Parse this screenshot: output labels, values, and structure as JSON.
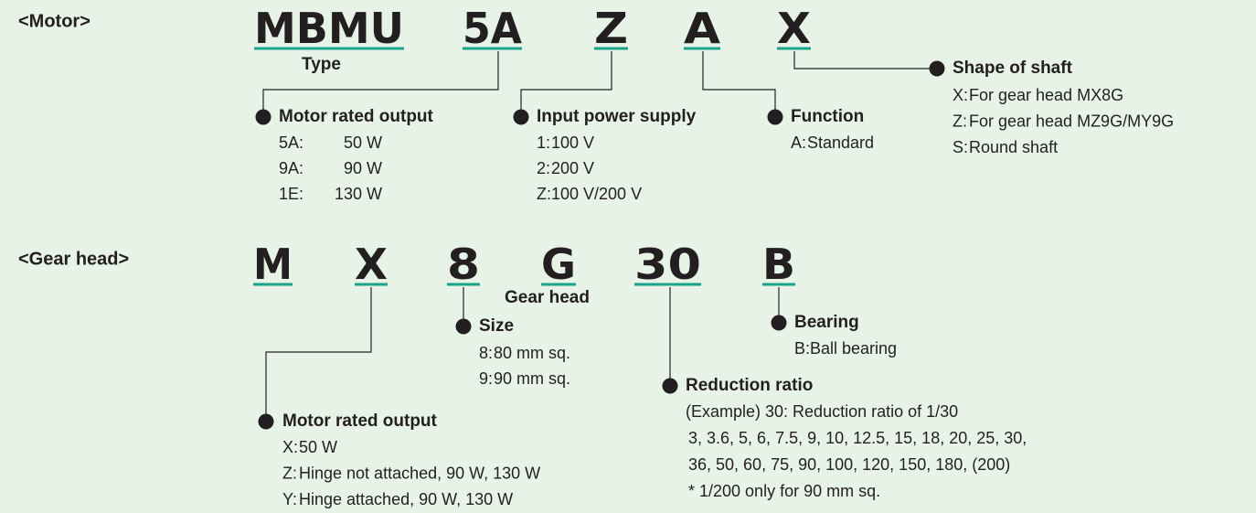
{
  "motor": {
    "label": "<Motor>",
    "codes": [
      "MBMU",
      "5A",
      "Z",
      "A",
      "X"
    ],
    "type_label": "Type",
    "groups": [
      {
        "title": "Motor rated output",
        "items": [
          {
            "code": "5A:",
            "text": "50 W"
          },
          {
            "code": "9A:",
            "text": "90 W"
          },
          {
            "code": "1E:",
            "text": "130 W"
          }
        ]
      },
      {
        "title": "Input power supply",
        "items": [
          {
            "code": "1:",
            "text": "100 V"
          },
          {
            "code": "2:",
            "text": "200 V"
          },
          {
            "code": "Z:",
            "text": "100 V/200 V"
          }
        ]
      },
      {
        "title": "Function",
        "items": [
          {
            "code": "A:",
            "text": "Standard"
          }
        ]
      },
      {
        "title": "Shape of shaft",
        "items": [
          {
            "code": "X:",
            "text": "For gear head MX8G"
          },
          {
            "code": "Z:",
            "text": "For gear head MZ9G/MY9G"
          },
          {
            "code": "S:",
            "text": "Round shaft"
          }
        ]
      }
    ]
  },
  "gear_head": {
    "label": "<Gear head>",
    "codes": [
      "M",
      "X",
      "8",
      "G",
      "30",
      "B"
    ],
    "type_label": "Gear head",
    "groups": [
      {
        "title": "Size",
        "items": [
          {
            "code": "8:",
            "text": "80 mm sq."
          },
          {
            "code": "9:",
            "text": "90 mm sq."
          }
        ]
      },
      {
        "title": "Bearing",
        "items": [
          {
            "code": "B:",
            "text": "Ball bearing"
          }
        ]
      },
      {
        "title": "Reduction ratio",
        "lines": [
          "(Example) 30: Reduction ratio of 1/30",
          "3, 3.6, 5, 6, 7.5, 9, 10, 12.5, 15, 18, 20, 25, 30,",
          "36, 50, 60, 75, 90, 100, 120, 150, 180, (200)",
          "* 1/200 only for 90 mm sq."
        ]
      },
      {
        "title": "Motor rated output",
        "items": [
          {
            "code": "X:",
            "text": "50 W"
          },
          {
            "code": "Z:",
            "text": "Hinge not attached, 90 W, 130 W"
          },
          {
            "code": "Y:",
            "text": "Hinge attached, 90 W, 130 W"
          }
        ]
      }
    ]
  }
}
